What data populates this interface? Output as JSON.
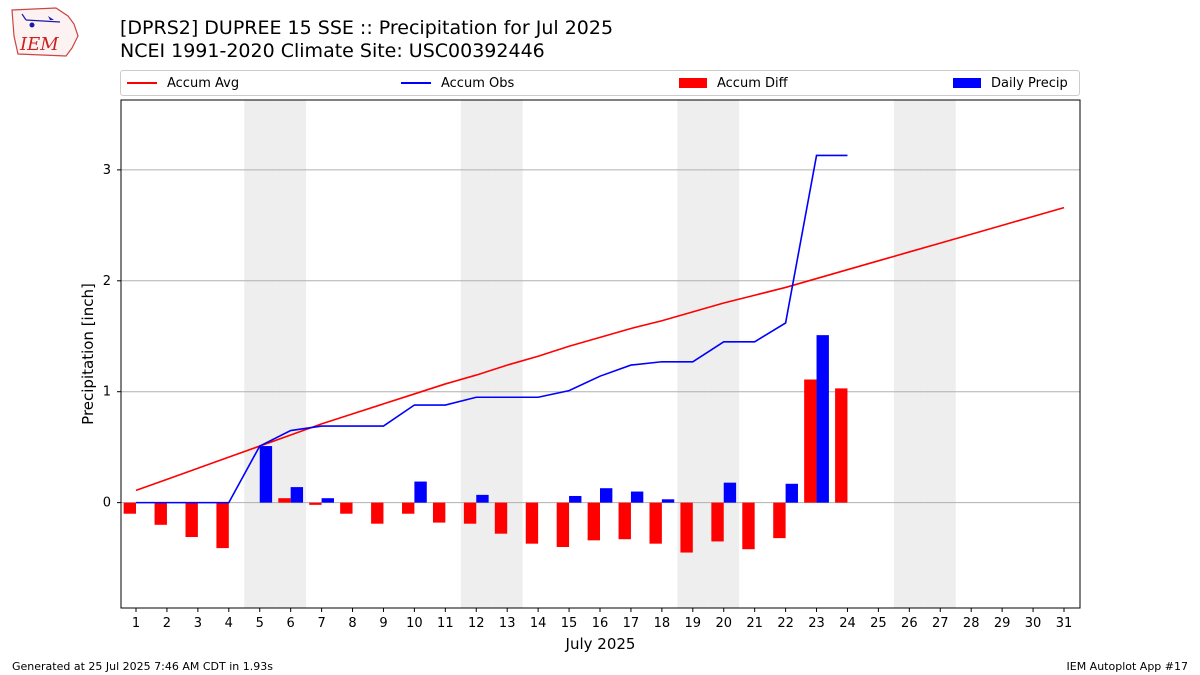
{
  "header": {
    "title_line1": "[DPRS2] DUPREE 15 SSE :: Precipitation for Jul 2025",
    "title_line2": "NCEI 1991-2020 Climate Site: USC00392446"
  },
  "logo": {
    "text": "IEM",
    "color": "#cc2222"
  },
  "footer": {
    "left": "Generated at 25 Jul 2025 7:46 AM CDT in 1.93s",
    "right": "IEM Autoplot App #17"
  },
  "legend": {
    "items": [
      {
        "label": "Accum Avg",
        "kind": "line",
        "color": "#ff0000"
      },
      {
        "label": "Accum Obs",
        "kind": "line",
        "color": "#0000ff"
      },
      {
        "label": "Accum Diff",
        "kind": "patch",
        "color": "#ff0000"
      },
      {
        "label": "Daily Precip",
        "kind": "patch",
        "color": "#0000ff"
      }
    ]
  },
  "chart_data": {
    "type": "bar",
    "xlabel": "July 2025",
    "ylabel": "Precipitation [inch]",
    "ylim": [
      -0.95,
      3.63
    ],
    "yticks": [
      0,
      1,
      2,
      3
    ],
    "days": [
      1,
      2,
      3,
      4,
      5,
      6,
      7,
      8,
      9,
      10,
      11,
      12,
      13,
      14,
      15,
      16,
      17,
      18,
      19,
      20,
      21,
      22,
      23,
      24,
      25,
      26,
      27,
      28,
      29,
      30,
      31
    ],
    "weekend_days": [
      5,
      6,
      12,
      13,
      19,
      20,
      26,
      27
    ],
    "grid": "y",
    "legend_position": "top",
    "series": [
      {
        "name": "Accum Avg",
        "type": "line",
        "color": "#ff0000",
        "values": [
          0.11,
          0.21,
          0.31,
          0.41,
          0.51,
          0.61,
          0.71,
          0.8,
          0.89,
          0.98,
          1.07,
          1.15,
          1.24,
          1.32,
          1.41,
          1.49,
          1.57,
          1.64,
          1.72,
          1.8,
          1.87,
          1.94,
          2.02,
          2.1,
          2.18,
          2.26,
          2.34,
          2.42,
          2.5,
          2.58,
          2.66
        ]
      },
      {
        "name": "Accum Obs",
        "type": "line",
        "color": "#0000ff",
        "values": [
          0,
          0,
          0,
          0,
          0.51,
          0.65,
          0.69,
          0.69,
          0.69,
          0.88,
          0.88,
          0.95,
          0.95,
          0.95,
          1.01,
          1.14,
          1.24,
          1.27,
          1.27,
          1.45,
          1.45,
          1.62,
          3.13,
          3.13
        ]
      },
      {
        "name": "Accum Diff",
        "type": "bar",
        "color": "#ff0000",
        "values": [
          -0.1,
          -0.2,
          -0.31,
          -0.41,
          0,
          0.04,
          -0.02,
          -0.1,
          -0.19,
          -0.1,
          -0.18,
          -0.19,
          -0.28,
          -0.37,
          -0.4,
          -0.34,
          -0.33,
          -0.37,
          -0.45,
          -0.35,
          -0.42,
          -0.32,
          1.11,
          1.03
        ]
      },
      {
        "name": "Daily Precip",
        "type": "bar",
        "color": "#0000ff",
        "values": [
          0,
          0,
          0,
          0,
          0.51,
          0.14,
          0.04,
          0,
          0,
          0.19,
          0,
          0.07,
          0,
          0,
          0.06,
          0.13,
          0.1,
          0.03,
          0,
          0.18,
          0,
          0.17,
          1.51,
          0
        ]
      }
    ]
  }
}
